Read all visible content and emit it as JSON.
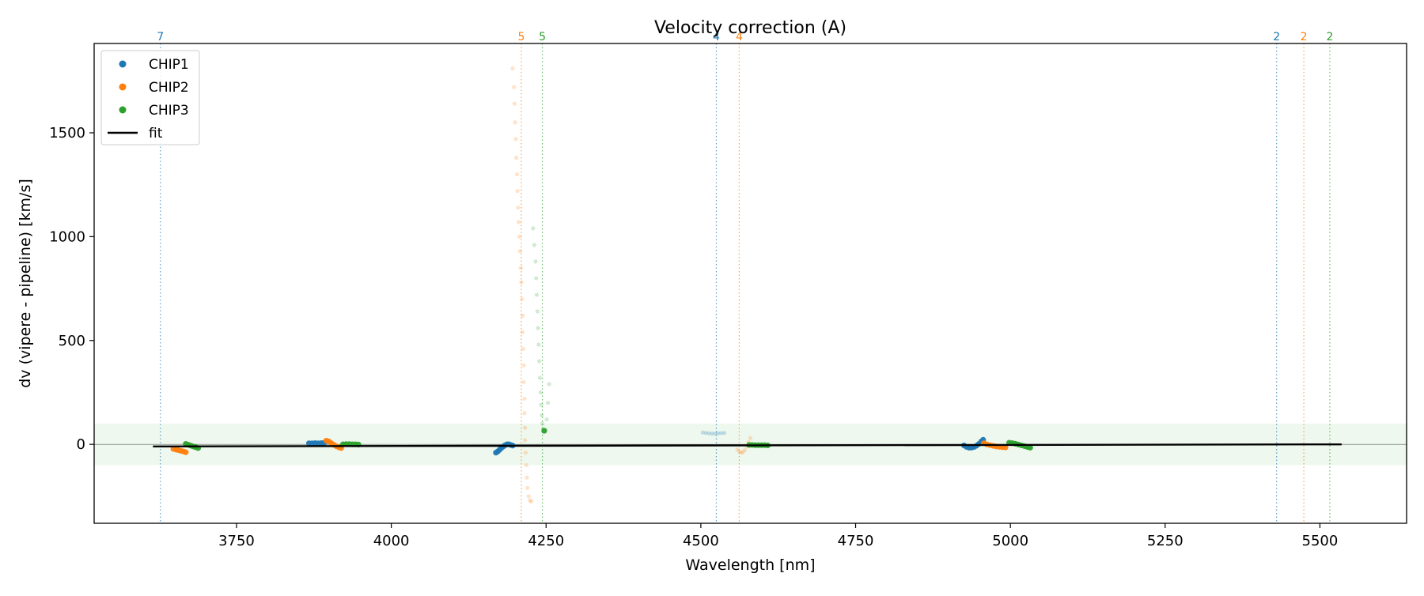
{
  "chart_data": {
    "type": "scatter",
    "title": "Velocity correction (A)",
    "xlabel": "Wavelength [nm]",
    "ylabel": "dv (vipere - pipeline) [km/s]",
    "xlim": [
      3520,
      5640
    ],
    "ylim": [
      -380,
      1930
    ],
    "xticks": [
      3750,
      4000,
      4250,
      4500,
      4750,
      5000,
      5250,
      5500
    ],
    "yticks": [
      0,
      500,
      1000,
      1500
    ],
    "grid": false,
    "legend_position": "top-left",
    "legend": [
      {
        "label": "CHIP1",
        "marker": "dot",
        "color": "#1f77b4"
      },
      {
        "label": "CHIP2",
        "marker": "dot",
        "color": "#ff7f0e"
      },
      {
        "label": "CHIP3",
        "marker": "dot",
        "color": "#2ca02c"
      },
      {
        "label": "fit",
        "marker": "line",
        "color": "#000000"
      }
    ],
    "band": {
      "y": [
        -100,
        100
      ],
      "color": "#2ca02c",
      "opacity": 0.08
    },
    "zero_line": {
      "y": 0,
      "color": "#000000"
    },
    "fit_line": {
      "x": [
        3615,
        5535
      ],
      "y": [
        -10,
        0
      ],
      "color": "#000000"
    },
    "order_markers": [
      {
        "x": 3627,
        "label": "7",
        "color": "#1f77b4"
      },
      {
        "x": 4210,
        "label": "5",
        "color": "#ff7f0e"
      },
      {
        "x": 4244,
        "label": "5",
        "color": "#2ca02c"
      },
      {
        "x": 4525,
        "label": "4",
        "color": "#1f77b4"
      },
      {
        "x": 4562,
        "label": "4",
        "color": "#ff7f0e"
      },
      {
        "x": 5430,
        "label": "2",
        "color": "#1f77b4"
      },
      {
        "x": 5474,
        "label": "2",
        "color": "#ff7f0e"
      },
      {
        "x": 5516,
        "label": "2",
        "color": "#2ca02c"
      }
    ],
    "series": [
      {
        "name": "CHIP1",
        "color": "#1f77b4",
        "points": [
          {
            "x": 3867,
            "y": 5,
            "faint": false
          },
          {
            "x": 3872,
            "y": 5,
            "faint": false
          },
          {
            "x": 3877,
            "y": 6,
            "faint": false
          },
          {
            "x": 3882,
            "y": 5,
            "faint": false
          },
          {
            "x": 3887,
            "y": 6,
            "faint": false
          },
          {
            "x": 3892,
            "y": 8,
            "faint": false
          },
          {
            "x": 4169,
            "y": -40,
            "faint": false
          },
          {
            "x": 4172,
            "y": -34,
            "faint": false
          },
          {
            "x": 4175,
            "y": -26,
            "faint": false
          },
          {
            "x": 4178,
            "y": -17,
            "faint": false
          },
          {
            "x": 4181,
            "y": -10,
            "faint": false
          },
          {
            "x": 4184,
            "y": -4,
            "faint": false
          },
          {
            "x": 4187,
            "y": 0,
            "faint": false
          },
          {
            "x": 4190,
            "y": 0,
            "faint": false
          },
          {
            "x": 4193,
            "y": -3,
            "faint": false
          },
          {
            "x": 4196,
            "y": -6,
            "faint": false
          },
          {
            "x": 4503,
            "y": 57,
            "faint": true
          },
          {
            "x": 4508,
            "y": 55,
            "faint": true
          },
          {
            "x": 4513,
            "y": 53,
            "faint": true
          },
          {
            "x": 4518,
            "y": 52,
            "faint": true
          },
          {
            "x": 4523,
            "y": 52,
            "faint": true
          },
          {
            "x": 4528,
            "y": 53,
            "faint": true
          },
          {
            "x": 4533,
            "y": 54,
            "faint": true
          },
          {
            "x": 4538,
            "y": 55,
            "faint": true
          },
          {
            "x": 4925,
            "y": -5,
            "faint": false
          },
          {
            "x": 4929,
            "y": -12,
            "faint": false
          },
          {
            "x": 4933,
            "y": -16,
            "faint": false
          },
          {
            "x": 4937,
            "y": -16,
            "faint": false
          },
          {
            "x": 4941,
            "y": -13,
            "faint": false
          },
          {
            "x": 4945,
            "y": -7,
            "faint": false
          },
          {
            "x": 4949,
            "y": 2,
            "faint": false
          },
          {
            "x": 4953,
            "y": 14,
            "faint": false
          },
          {
            "x": 4956,
            "y": 22,
            "faint": false
          }
        ]
      },
      {
        "name": "CHIP2",
        "color": "#ff7f0e",
        "points": [
          {
            "x": 3648,
            "y": -22,
            "faint": false
          },
          {
            "x": 3652,
            "y": -25,
            "faint": false
          },
          {
            "x": 3656,
            "y": -28,
            "faint": false
          },
          {
            "x": 3660,
            "y": -31,
            "faint": false
          },
          {
            "x": 3664,
            "y": -34,
            "faint": false
          },
          {
            "x": 3668,
            "y": -38,
            "faint": false
          },
          {
            "x": 3895,
            "y": 18,
            "faint": false
          },
          {
            "x": 3899,
            "y": 14,
            "faint": false
          },
          {
            "x": 3903,
            "y": 6,
            "faint": false
          },
          {
            "x": 3907,
            "y": -2,
            "faint": false
          },
          {
            "x": 3911,
            "y": -9,
            "faint": false
          },
          {
            "x": 3915,
            "y": -14,
            "faint": false
          },
          {
            "x": 3919,
            "y": -18,
            "faint": false
          },
          {
            "x": 4196,
            "y": 1810,
            "faint": true
          },
          {
            "x": 4198,
            "y": 1720,
            "faint": true
          },
          {
            "x": 4199,
            "y": 1640,
            "faint": true
          },
          {
            "x": 4200,
            "y": 1550,
            "faint": true
          },
          {
            "x": 4201,
            "y": 1470,
            "faint": true
          },
          {
            "x": 4202,
            "y": 1380,
            "faint": true
          },
          {
            "x": 4203,
            "y": 1300,
            "faint": true
          },
          {
            "x": 4204,
            "y": 1220,
            "faint": true
          },
          {
            "x": 4205,
            "y": 1140,
            "faint": true
          },
          {
            "x": 4206,
            "y": 1070,
            "faint": true
          },
          {
            "x": 4207,
            "y": 1000,
            "faint": true
          },
          {
            "x": 4208,
            "y": 930,
            "faint": true
          },
          {
            "x": 4209,
            "y": 850,
            "faint": true
          },
          {
            "x": 4210,
            "y": 780,
            "faint": true
          },
          {
            "x": 4211,
            "y": 700,
            "faint": true
          },
          {
            "x": 4212,
            "y": 620,
            "faint": true
          },
          {
            "x": 4212,
            "y": 540,
            "faint": true
          },
          {
            "x": 4213,
            "y": 460,
            "faint": true
          },
          {
            "x": 4214,
            "y": 380,
            "faint": true
          },
          {
            "x": 4214,
            "y": 300,
            "faint": true
          },
          {
            "x": 4215,
            "y": 220,
            "faint": true
          },
          {
            "x": 4215,
            "y": 150,
            "faint": true
          },
          {
            "x": 4216,
            "y": 80,
            "faint": true
          },
          {
            "x": 4216,
            "y": 20,
            "faint": true
          },
          {
            "x": 4217,
            "y": -40,
            "faint": true
          },
          {
            "x": 4218,
            "y": -100,
            "faint": true
          },
          {
            "x": 4219,
            "y": -160,
            "faint": true
          },
          {
            "x": 4220,
            "y": -210,
            "faint": true
          },
          {
            "x": 4222,
            "y": -250,
            "faint": true
          },
          {
            "x": 4224,
            "y": -270,
            "faint": true
          },
          {
            "x": 4226,
            "y": -275,
            "faint": true
          },
          {
            "x": 4559,
            "y": -25,
            "faint": true
          },
          {
            "x": 4562,
            "y": -35,
            "faint": true
          },
          {
            "x": 4565,
            "y": -40,
            "faint": true
          },
          {
            "x": 4568,
            "y": -38,
            "faint": true
          },
          {
            "x": 4571,
            "y": -28,
            "faint": true
          },
          {
            "x": 4574,
            "y": -10,
            "faint": true
          },
          {
            "x": 4577,
            "y": 10,
            "faint": true
          },
          {
            "x": 4580,
            "y": 30,
            "faint": true
          },
          {
            "x": 4957,
            "y": 5,
            "faint": false
          },
          {
            "x": 4962,
            "y": 0,
            "faint": false
          },
          {
            "x": 4967,
            "y": -4,
            "faint": false
          },
          {
            "x": 4972,
            "y": -7,
            "faint": false
          },
          {
            "x": 4977,
            "y": -10,
            "faint": false
          },
          {
            "x": 4982,
            "y": -12,
            "faint": false
          },
          {
            "x": 4987,
            "y": -14,
            "faint": false
          },
          {
            "x": 4992,
            "y": -15,
            "faint": false
          }
        ]
      },
      {
        "name": "CHIP3",
        "color": "#2ca02c",
        "points": [
          {
            "x": 3668,
            "y": 2,
            "faint": false
          },
          {
            "x": 3672,
            "y": -2,
            "faint": false
          },
          {
            "x": 3676,
            "y": -6,
            "faint": false
          },
          {
            "x": 3680,
            "y": -10,
            "faint": false
          },
          {
            "x": 3684,
            "y": -14,
            "faint": false
          },
          {
            "x": 3688,
            "y": -18,
            "faint": false
          },
          {
            "x": 3922,
            "y": 0,
            "faint": false
          },
          {
            "x": 3927,
            "y": 1,
            "faint": false
          },
          {
            "x": 3932,
            "y": 1,
            "faint": false
          },
          {
            "x": 3937,
            "y": 0,
            "faint": false
          },
          {
            "x": 3942,
            "y": 0,
            "faint": false
          },
          {
            "x": 3947,
            "y": -1,
            "faint": false
          },
          {
            "x": 4229,
            "y": 1040,
            "faint": true
          },
          {
            "x": 4231,
            "y": 960,
            "faint": true
          },
          {
            "x": 4233,
            "y": 880,
            "faint": true
          },
          {
            "x": 4234,
            "y": 800,
            "faint": true
          },
          {
            "x": 4235,
            "y": 720,
            "faint": true
          },
          {
            "x": 4236,
            "y": 640,
            "faint": true
          },
          {
            "x": 4237,
            "y": 560,
            "faint": true
          },
          {
            "x": 4238,
            "y": 480,
            "faint": true
          },
          {
            "x": 4239,
            "y": 400,
            "faint": true
          },
          {
            "x": 4240,
            "y": 320,
            "faint": true
          },
          {
            "x": 4241,
            "y": 250,
            "faint": true
          },
          {
            "x": 4242,
            "y": 190,
            "faint": true
          },
          {
            "x": 4243,
            "y": 140,
            "faint": true
          },
          {
            "x": 4244,
            "y": 100,
            "faint": true
          },
          {
            "x": 4245,
            "y": 75,
            "faint": true
          },
          {
            "x": 4247,
            "y": 65,
            "faint": false
          },
          {
            "x": 4249,
            "y": 70,
            "faint": true
          },
          {
            "x": 4251,
            "y": 120,
            "faint": true
          },
          {
            "x": 4253,
            "y": 200,
            "faint": true
          },
          {
            "x": 4255,
            "y": 290,
            "faint": true
          },
          {
            "x": 4578,
            "y": -3,
            "faint": false
          },
          {
            "x": 4583,
            "y": -3,
            "faint": false
          },
          {
            "x": 4588,
            "y": -4,
            "faint": false
          },
          {
            "x": 4593,
            "y": -4,
            "faint": false
          },
          {
            "x": 4598,
            "y": -4,
            "faint": false
          },
          {
            "x": 4603,
            "y": -4,
            "faint": false
          },
          {
            "x": 4608,
            "y": -5,
            "faint": false
          },
          {
            "x": 4998,
            "y": 8,
            "faint": false
          },
          {
            "x": 5003,
            "y": 6,
            "faint": false
          },
          {
            "x": 5008,
            "y": 3,
            "faint": false
          },
          {
            "x": 5013,
            "y": -1,
            "faint": false
          },
          {
            "x": 5018,
            "y": -5,
            "faint": false
          },
          {
            "x": 5023,
            "y": -9,
            "faint": false
          },
          {
            "x": 5028,
            "y": -13,
            "faint": false
          },
          {
            "x": 5032,
            "y": -16,
            "faint": false
          }
        ]
      }
    ]
  }
}
